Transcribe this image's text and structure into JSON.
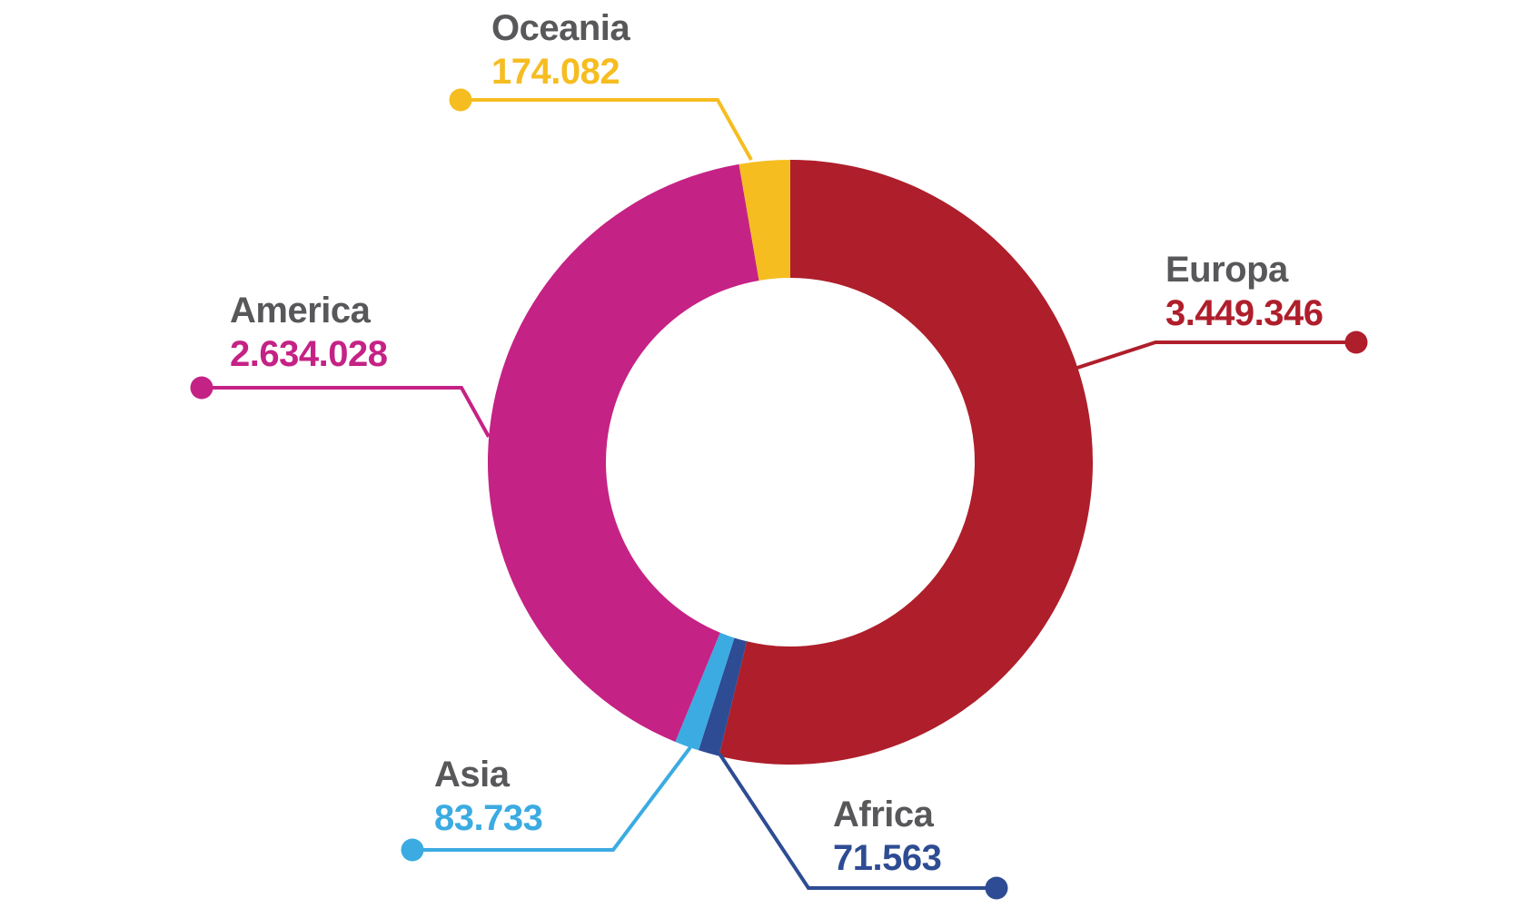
{
  "chart_data": {
    "type": "pie",
    "subtype": "donut",
    "direction": "clockwise",
    "start_angle_deg": 0,
    "legend": "none",
    "background_color": "#ffffff",
    "label_title_color": "#58585b",
    "segments": [
      {
        "label": "Europa",
        "value": 3449346,
        "display_value": "3.449.346",
        "color": "#af1e2b"
      },
      {
        "label": "Africa",
        "value": 71563,
        "display_value": "71.563",
        "color": "#2e4c93"
      },
      {
        "label": "Asia",
        "value": 83733,
        "display_value": "83.733",
        "color": "#3babe2"
      },
      {
        "label": "America",
        "value": 2634028,
        "display_value": "2.634.028",
        "color": "#c52285"
      },
      {
        "label": "Oceania",
        "value": 174082,
        "display_value": "174.082",
        "color": "#f6bd21"
      }
    ]
  }
}
